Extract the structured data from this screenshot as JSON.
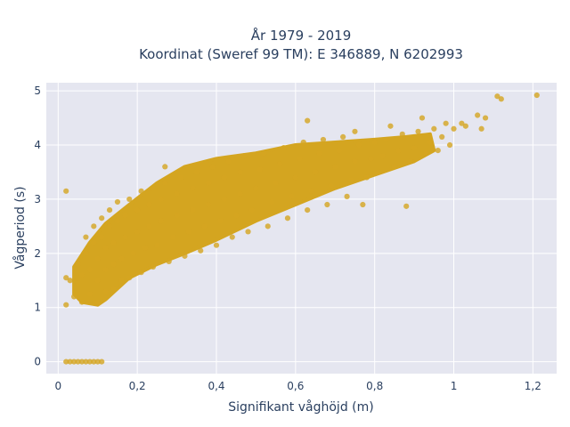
{
  "chart_data": {
    "type": "scatter",
    "title": "År 1979 - 2019",
    "subtitle": "Koordinat (Sweref 99 TM): E 346889, N 6202993",
    "xlabel": "Signifikant våghöjd (m)",
    "ylabel": "Vågperiod (s)",
    "xlim": [
      -0.03,
      1.26
    ],
    "ylim": [
      -0.22,
      5.15
    ],
    "xticks": [
      0,
      0.2,
      0.4,
      0.6,
      0.8,
      1,
      1.2
    ],
    "xtick_labels": [
      "0",
      "0,2",
      "0,4",
      "0,6",
      "0,8",
      "1",
      "1,2"
    ],
    "yticks": [
      0,
      1,
      2,
      3,
      4,
      5
    ],
    "ytick_labels": [
      "0",
      "1",
      "2",
      "3",
      "4",
      "5"
    ],
    "grid": true,
    "legend": "none",
    "marker_color": "#d4a520",
    "plot_background": "#e5e6f0",
    "series": [
      {
        "points": [
          [
            0.02,
            0
          ],
          [
            0.03,
            0
          ],
          [
            0.04,
            0
          ],
          [
            0.05,
            0
          ],
          [
            0.06,
            0
          ],
          [
            0.07,
            0
          ],
          [
            0.08,
            0
          ],
          [
            0.09,
            0
          ],
          [
            0.1,
            0
          ],
          [
            0.11,
            0
          ],
          [
            0.02,
            3.15
          ],
          [
            0.02,
            1.05
          ],
          [
            0.02,
            1.55
          ],
          [
            0.03,
            1.5
          ],
          [
            0.04,
            1.2
          ],
          [
            0.05,
            1.45
          ],
          [
            0.05,
            1.8
          ],
          [
            0.06,
            1.1
          ],
          [
            0.06,
            1.6
          ],
          [
            0.07,
            2.0
          ],
          [
            0.07,
            2.3
          ],
          [
            0.08,
            1.25
          ],
          [
            0.08,
            1.7
          ],
          [
            0.09,
            2.2
          ],
          [
            0.09,
            2.5
          ],
          [
            0.1,
            1.1
          ],
          [
            0.1,
            1.5
          ],
          [
            0.1,
            1.9
          ],
          [
            0.11,
            2.3
          ],
          [
            0.11,
            2.65
          ],
          [
            0.12,
            1.3
          ],
          [
            0.12,
            1.7
          ],
          [
            0.12,
            2.1
          ],
          [
            0.13,
            2.5
          ],
          [
            0.13,
            2.8
          ],
          [
            0.14,
            1.35
          ],
          [
            0.14,
            1.8
          ],
          [
            0.14,
            2.2
          ],
          [
            0.15,
            2.6
          ],
          [
            0.15,
            2.95
          ],
          [
            0.16,
            1.5
          ],
          [
            0.16,
            1.9
          ],
          [
            0.17,
            2.3
          ],
          [
            0.17,
            2.7
          ],
          [
            0.18,
            3.0
          ],
          [
            0.18,
            1.55
          ],
          [
            0.19,
            2.0
          ],
          [
            0.2,
            2.4
          ],
          [
            0.2,
            2.8
          ],
          [
            0.21,
            3.15
          ],
          [
            0.21,
            1.65
          ],
          [
            0.22,
            2.1
          ],
          [
            0.23,
            2.5
          ],
          [
            0.23,
            2.9
          ],
          [
            0.24,
            3.2
          ],
          [
            0.24,
            1.75
          ],
          [
            0.25,
            2.15
          ],
          [
            0.26,
            2.6
          ],
          [
            0.26,
            3.0
          ],
          [
            0.27,
            3.3
          ],
          [
            0.27,
            3.6
          ],
          [
            0.28,
            1.85
          ],
          [
            0.29,
            2.3
          ],
          [
            0.3,
            2.7
          ],
          [
            0.3,
            3.1
          ],
          [
            0.31,
            3.4
          ],
          [
            0.32,
            1.95
          ],
          [
            0.33,
            2.4
          ],
          [
            0.34,
            2.8
          ],
          [
            0.34,
            3.2
          ],
          [
            0.35,
            3.5
          ],
          [
            0.36,
            2.05
          ],
          [
            0.37,
            2.5
          ],
          [
            0.38,
            2.9
          ],
          [
            0.38,
            3.3
          ],
          [
            0.39,
            3.6
          ],
          [
            0.4,
            2.15
          ],
          [
            0.41,
            2.6
          ],
          [
            0.42,
            3.0
          ],
          [
            0.42,
            3.4
          ],
          [
            0.43,
            3.7
          ],
          [
            0.44,
            2.3
          ],
          [
            0.45,
            2.7
          ],
          [
            0.46,
            3.1
          ],
          [
            0.46,
            3.5
          ],
          [
            0.47,
            3.8
          ],
          [
            0.48,
            2.4
          ],
          [
            0.49,
            2.8
          ],
          [
            0.5,
            3.2
          ],
          [
            0.51,
            3.55
          ],
          [
            0.52,
            3.85
          ],
          [
            0.53,
            2.5
          ],
          [
            0.54,
            2.95
          ],
          [
            0.55,
            3.3
          ],
          [
            0.56,
            3.65
          ],
          [
            0.57,
            3.95
          ],
          [
            0.58,
            2.65
          ],
          [
            0.59,
            3.05
          ],
          [
            0.6,
            3.4
          ],
          [
            0.61,
            3.75
          ],
          [
            0.62,
            4.05
          ],
          [
            0.63,
            4.45
          ],
          [
            0.63,
            2.8
          ],
          [
            0.64,
            3.15
          ],
          [
            0.65,
            3.5
          ],
          [
            0.66,
            3.85
          ],
          [
            0.67,
            4.1
          ],
          [
            0.68,
            2.9
          ],
          [
            0.69,
            3.25
          ],
          [
            0.7,
            3.6
          ],
          [
            0.71,
            3.9
          ],
          [
            0.72,
            4.15
          ],
          [
            0.73,
            3.05
          ],
          [
            0.74,
            3.35
          ],
          [
            0.75,
            3.7
          ],
          [
            0.75,
            4.25
          ],
          [
            0.76,
            4.0
          ],
          [
            0.77,
            2.9
          ],
          [
            0.78,
            3.4
          ],
          [
            0.79,
            3.75
          ],
          [
            0.8,
            4.05
          ],
          [
            0.81,
            3.5
          ],
          [
            0.82,
            3.8
          ],
          [
            0.83,
            4.1
          ],
          [
            0.84,
            4.35
          ],
          [
            0.85,
            3.6
          ],
          [
            0.86,
            3.9
          ],
          [
            0.87,
            4.2
          ],
          [
            0.88,
            2.87
          ],
          [
            0.89,
            3.7
          ],
          [
            0.9,
            3.95
          ],
          [
            0.91,
            4.25
          ],
          [
            0.92,
            4.5
          ],
          [
            0.93,
            3.85
          ],
          [
            0.94,
            4.05
          ],
          [
            0.95,
            4.3
          ],
          [
            0.96,
            3.9
          ],
          [
            0.97,
            4.15
          ],
          [
            0.98,
            4.4
          ],
          [
            0.99,
            4.0
          ],
          [
            1.0,
            4.3
          ],
          [
            1.02,
            4.4
          ],
          [
            1.03,
            4.35
          ],
          [
            1.06,
            4.55
          ],
          [
            1.07,
            4.3
          ],
          [
            1.08,
            4.5
          ],
          [
            1.11,
            4.9
          ],
          [
            1.12,
            4.85
          ],
          [
            1.21,
            4.92
          ]
        ]
      }
    ]
  }
}
